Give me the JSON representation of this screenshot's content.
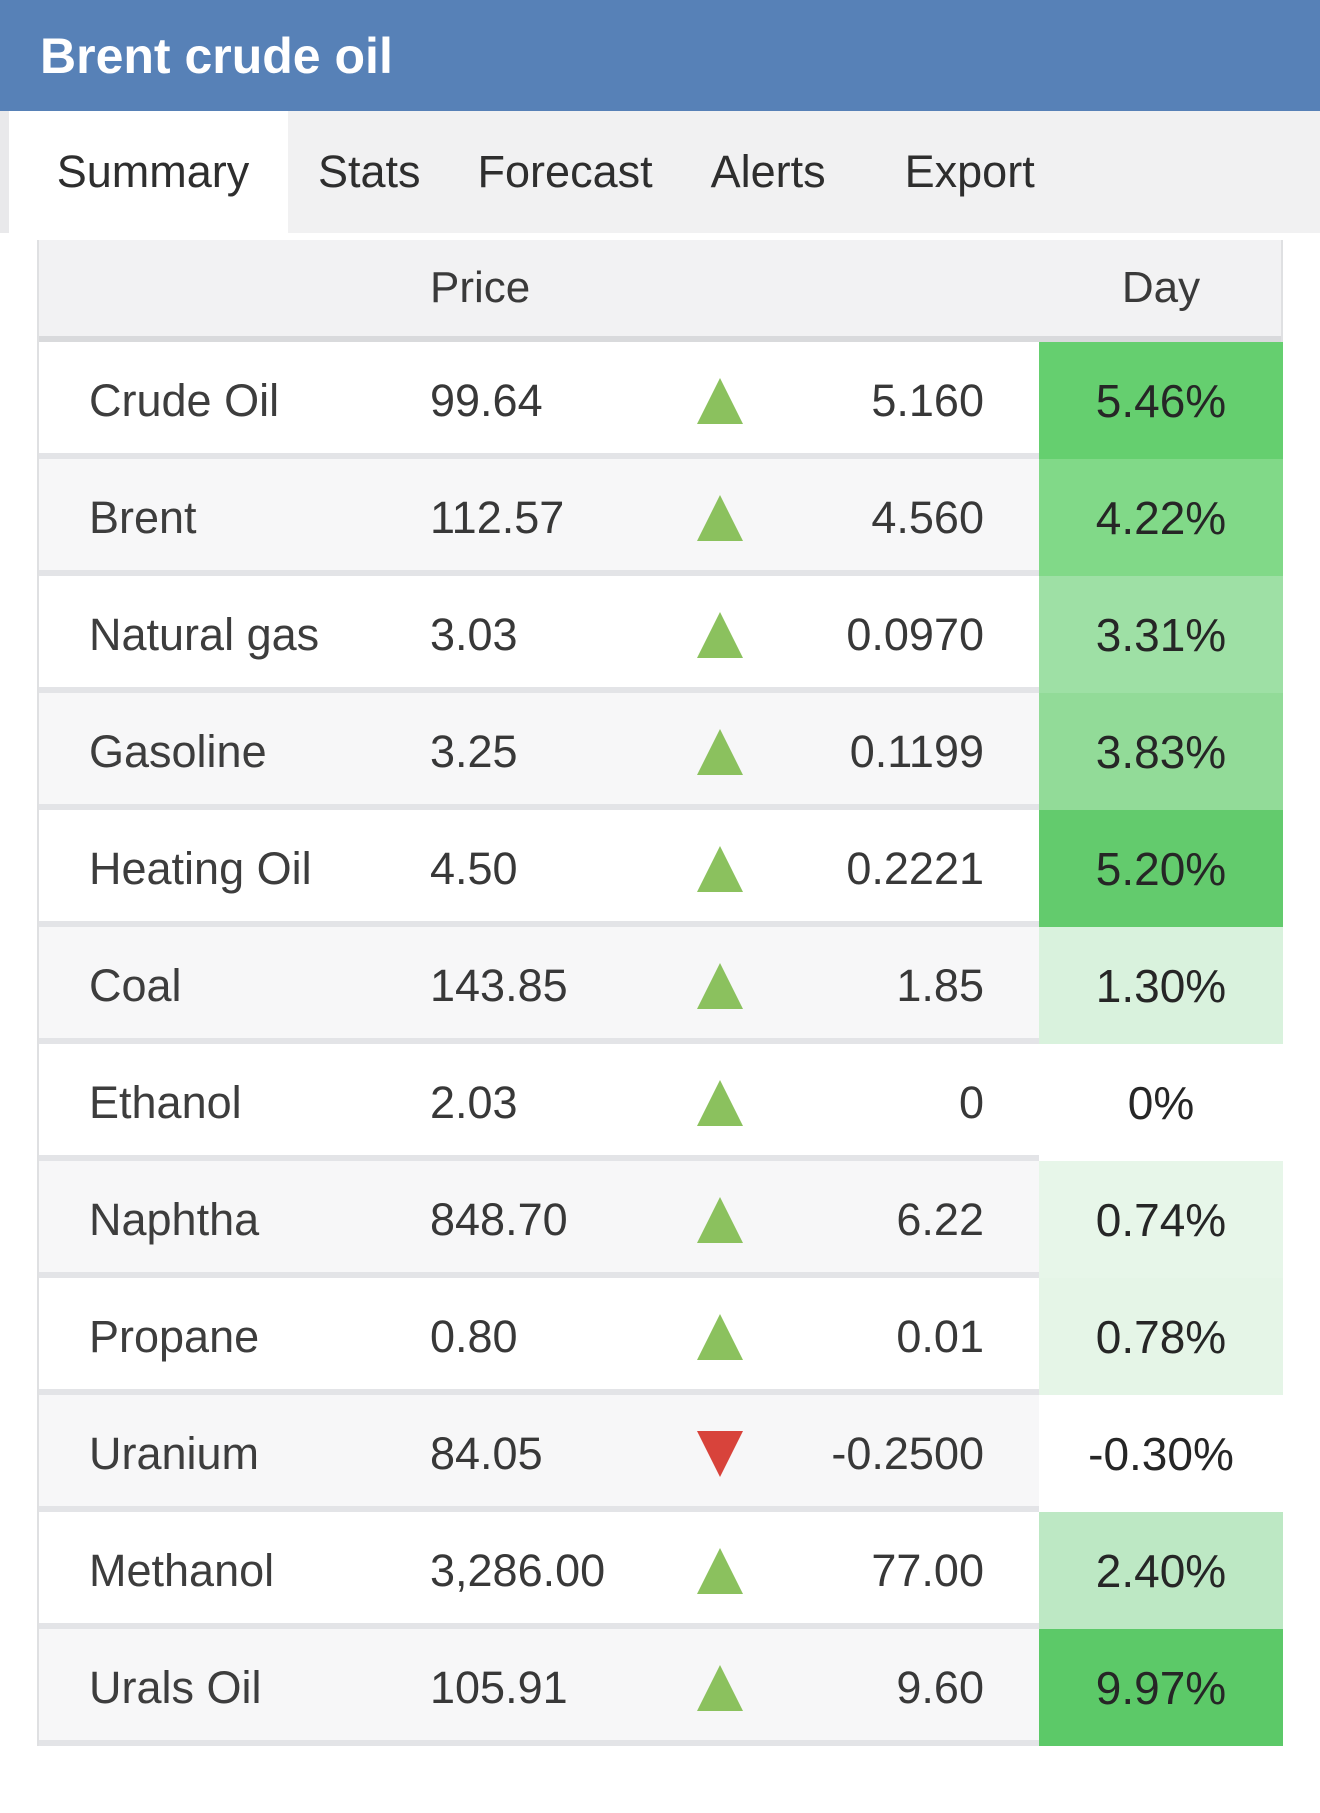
{
  "header": {
    "title": "Brent crude oil",
    "bg": "#5781b7"
  },
  "tabs": {
    "items": [
      {
        "label": "Summary",
        "active": true
      },
      {
        "label": "Stats",
        "active": false
      },
      {
        "label": "Forecast",
        "active": false
      },
      {
        "label": "Alerts",
        "active": false
      },
      {
        "label": "Export",
        "active": false
      }
    ]
  },
  "table": {
    "headers": {
      "price": "Price",
      "day": "Day"
    },
    "colors": {
      "arrow_up": "#8bc15e",
      "arrow_down": "#d8433b"
    },
    "rows": [
      {
        "name": "Crude Oil",
        "price": "99.64",
        "direction": "up",
        "change": "5.160",
        "day": "5.46%",
        "day_bg": "#65cf6f"
      },
      {
        "name": "Brent",
        "price": "112.57",
        "direction": "up",
        "change": "4.560",
        "day": "4.22%",
        "day_bg": "#81d988"
      },
      {
        "name": "Natural gas",
        "price": "3.03",
        "direction": "up",
        "change": "0.0970",
        "day": "3.31%",
        "day_bg": "#9ee0a5"
      },
      {
        "name": "Gasoline",
        "price": "3.25",
        "direction": "up",
        "change": "0.1199",
        "day": "3.83%",
        "day_bg": "#92db98"
      },
      {
        "name": "Heating Oil",
        "price": "4.50",
        "direction": "up",
        "change": "0.2221",
        "day": "5.20%",
        "day_bg": "#63cb6d"
      },
      {
        "name": "Coal",
        "price": "143.85",
        "direction": "up",
        "change": "1.85",
        "day": "1.30%",
        "day_bg": "#d9f2dd"
      },
      {
        "name": "Ethanol",
        "price": "2.03",
        "direction": "up",
        "change": "0",
        "day": "0%",
        "day_bg": "#ffffff"
      },
      {
        "name": "Naphtha",
        "price": "848.70",
        "direction": "up",
        "change": "6.22",
        "day": "0.74%",
        "day_bg": "#e7f6e9"
      },
      {
        "name": "Propane",
        "price": "0.80",
        "direction": "up",
        "change": "0.01",
        "day": "0.78%",
        "day_bg": "#e5f5e7"
      },
      {
        "name": "Uranium",
        "price": "84.05",
        "direction": "down",
        "change": "-0.2500",
        "day": "-0.30%",
        "day_bg": "#ffffff"
      },
      {
        "name": "Methanol",
        "price": "3,286.00",
        "direction": "up",
        "change": "77.00",
        "day": "2.40%",
        "day_bg": "#bde8c4"
      },
      {
        "name": "Urals Oil",
        "price": "105.91",
        "direction": "up",
        "change": "9.60",
        "day": "9.97%",
        "day_bg": "#5cc968"
      }
    ]
  }
}
